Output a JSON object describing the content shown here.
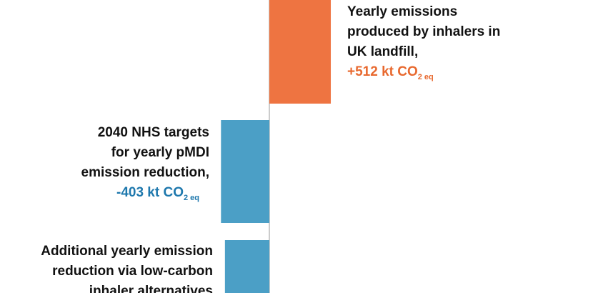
{
  "chart_data": {
    "type": "bar",
    "categories": [
      [
        "Yearly emissions",
        "produced by inhalers in",
        "UK landfill,"
      ],
      [
        "2040 NHS targets",
        "for yearly pMDI",
        "emission reduction,"
      ],
      [
        "Additional yearly emission",
        "reduction via low-carbon",
        "inhaler alternatives"
      ]
    ],
    "values": [
      512,
      -403,
      -370
    ],
    "value_labels": [
      "+512 kt CO",
      "-403 kt CO",
      null
    ],
    "value_label_subscripts": [
      "2 eq",
      "2 eq",
      null
    ],
    "colors": [
      "#ee7441",
      "#4b9fc6",
      "#4b9fc6"
    ],
    "label_colors": [
      "#e8692f",
      "#1e78ad",
      "#1e78ad"
    ]
  }
}
